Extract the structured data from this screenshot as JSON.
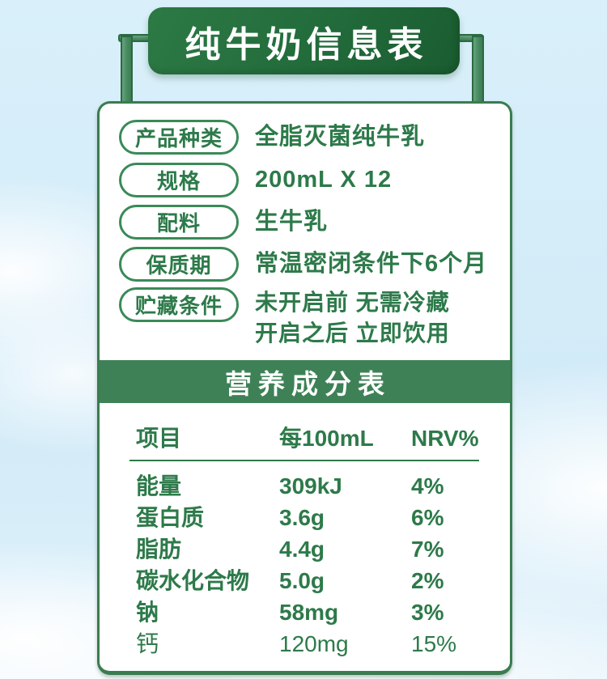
{
  "title": "纯牛奶信息表",
  "info_table": {
    "rows": [
      {
        "label": "产品种类",
        "value": "全脂灭菌纯牛乳"
      },
      {
        "label": "规格",
        "value": "200mL X 12"
      },
      {
        "label": "配料",
        "value": "生牛乳"
      },
      {
        "label": "保质期",
        "value": "常温密闭条件下6个月"
      },
      {
        "label": "贮藏条件",
        "value": "未开启前 无需冷藏",
        "value_line2": "开启之后 立即饮用"
      }
    ]
  },
  "nutrition_table": {
    "banner": "营养成分表",
    "headers": {
      "item": "项目",
      "per": "每100mL",
      "nrv": "NRV%"
    },
    "rows": [
      {
        "item": "能量",
        "per": "309kJ",
        "nrv": "4%"
      },
      {
        "item": "蛋白质",
        "per": "3.6g",
        "nrv": "6%"
      },
      {
        "item": "脂肪",
        "per": "4.4g",
        "nrv": "7%"
      },
      {
        "item": "碳水化合物",
        "per": "5.0g",
        "nrv": "2%"
      },
      {
        "item": "钠",
        "per": "58mg",
        "nrv": "3%"
      },
      {
        "item": "钙",
        "per": "120mg",
        "nrv": "15%"
      }
    ]
  },
  "colors": {
    "title_banner_green": "#226b3b",
    "nutrition_banner_green": "#3e8156",
    "text_green": "#2d7a4a",
    "frame_green": "#478a60",
    "card_border_green": "#3a7c50",
    "sky_blue": "#d2ebf8"
  }
}
